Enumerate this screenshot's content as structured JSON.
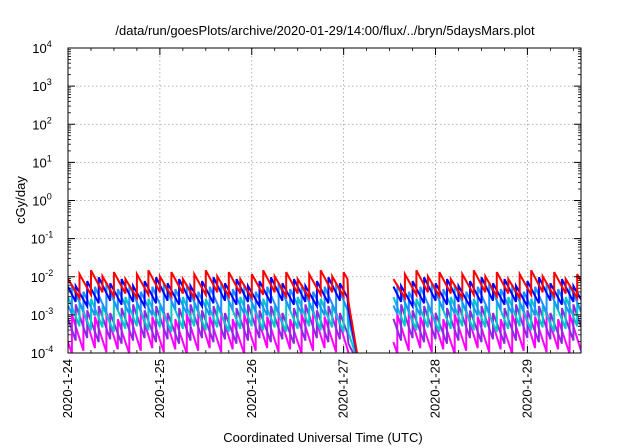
{
  "chart_data": {
    "type": "line",
    "title": "/data/run/goesPlots/archive/2020-01-29/14:00/flux/../bryn/5daysMars.plot",
    "xlabel": "Coordinated Universal Time (UTC)",
    "ylabel": "cGy/day",
    "yscale": "log",
    "ylim": [
      0.0001,
      10000
    ],
    "xlim": [
      "2020-01-24 00:00",
      "2020-01-29 14:00"
    ],
    "grid": true,
    "x_ticks": [
      "2020-1-24",
      "2020-1-25",
      "2020-1-26",
      "2020-1-27",
      "2020-1-28",
      "2020-1-29"
    ],
    "y_ticks": [
      {
        "base": "10",
        "exp": "-4"
      },
      {
        "base": "10",
        "exp": "-3"
      },
      {
        "base": "10",
        "exp": "-2"
      },
      {
        "base": "10",
        "exp": "-1"
      },
      {
        "base": "10",
        "exp": "0"
      },
      {
        "base": "10",
        "exp": "1"
      },
      {
        "base": "10",
        "exp": "2"
      },
      {
        "base": "10",
        "exp": "3"
      },
      {
        "base": "10",
        "exp": "4"
      }
    ],
    "segments": [
      {
        "start": "2020-01-24 00:00",
        "end": "2020-01-27 01:00",
        "tail_end": "2020-01-27 04:00"
      },
      {
        "start": "2020-01-27 13:00",
        "end": "2020-01-29 14:00",
        "tail_end": null
      }
    ],
    "sawtooth_period_hours": 3,
    "series": [
      {
        "color": "#ff0000",
        "peak": 0.0125,
        "trough": 0.0035
      },
      {
        "color": "#0000ff",
        "peak": 0.0082,
        "trough": 0.0021
      },
      {
        "color": "#1e90ff",
        "peak": 0.0058,
        "trough": 0.0012
      },
      {
        "color": "#00c8c8",
        "peak": 0.0025,
        "trough": 0.00045
      },
      {
        "color": "#8a2be2",
        "peak": 0.0016,
        "trough": 0.00022
      },
      {
        "color": "#ff00ff",
        "peak": 0.0011,
        "trough": 0.00012
      }
    ]
  }
}
